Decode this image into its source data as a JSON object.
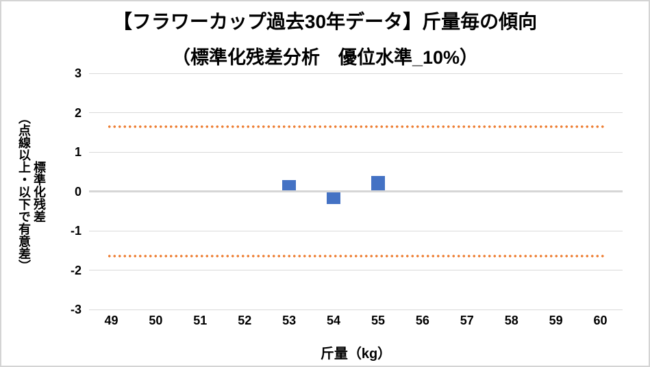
{
  "chart_data": {
    "type": "bar",
    "title_line1": "【フラワーカップ過去30年データ】斤量毎の傾向",
    "title_line2": "（標準化残差分析　優位水準_10%）",
    "xlabel": "斤量（kg）",
    "ylabel_line1": "標準化残差",
    "ylabel_line2": "（点線以上・以下で有意差）",
    "categories": [
      49,
      50,
      51,
      52,
      53,
      54,
      55,
      56,
      57,
      58,
      59,
      60
    ],
    "y_ticks": [
      3,
      2,
      1,
      0,
      -1,
      -2,
      -3
    ],
    "ylim": [
      -3,
      3
    ],
    "grid": true,
    "legend": "none",
    "bars": [
      {
        "x": 53,
        "value": 0.28
      },
      {
        "x": 54,
        "value": -0.32
      },
      {
        "x": 55,
        "value": 0.39
      }
    ],
    "threshold_lines": [
      {
        "position": "upper",
        "value": 1.65
      },
      {
        "position": "lower",
        "value": -1.65
      }
    ],
    "colors": {
      "bar": "#4472C4",
      "threshold": "#ED7D31",
      "gridline": "#D9D9D9",
      "zero_axis": "#D6D6D6",
      "text": "#000000"
    }
  }
}
